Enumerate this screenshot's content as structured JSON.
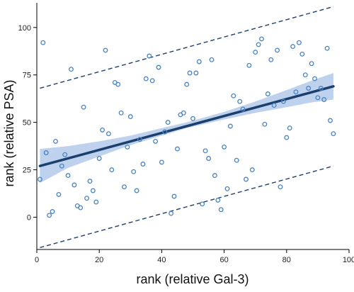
{
  "chart_data": {
    "type": "scatter",
    "xlabel": "rank (relative Gal-3)",
    "ylabel": "rank (relative PSA)",
    "xlim": [
      0,
      100
    ],
    "ylim": [
      -17,
      113
    ],
    "xticks": [
      0,
      20,
      40,
      60,
      80,
      100
    ],
    "yticks": [
      0,
      25,
      50,
      75,
      100
    ],
    "grid": false,
    "legend": "none",
    "colors": {
      "points": "#4a84c4",
      "fit_line": "#1c3f6e",
      "band": "#b3c9ea",
      "prediction_lines": "#1c3f6e"
    },
    "points": [
      [
        1,
        20
      ],
      [
        2,
        92
      ],
      [
        3,
        34
      ],
      [
        4,
        1
      ],
      [
        5,
        3
      ],
      [
        6,
        40
      ],
      [
        7,
        12
      ],
      [
        8,
        27
      ],
      [
        9,
        33
      ],
      [
        10,
        22
      ],
      [
        11,
        78
      ],
      [
        12,
        17
      ],
      [
        13,
        6
      ],
      [
        14,
        5
      ],
      [
        15,
        58
      ],
      [
        16,
        10
      ],
      [
        17,
        19
      ],
      [
        18,
        14
      ],
      [
        19,
        8
      ],
      [
        20,
        31
      ],
      [
        21,
        46
      ],
      [
        22,
        88
      ],
      [
        23,
        44
      ],
      [
        24,
        25
      ],
      [
        25,
        71
      ],
      [
        26,
        70
      ],
      [
        27,
        55
      ],
      [
        28,
        16
      ],
      [
        29,
        37
      ],
      [
        30,
        53
      ],
      [
        31,
        24
      ],
      [
        32,
        14
      ],
      [
        33,
        41
      ],
      [
        34,
        28
      ],
      [
        35,
        73
      ],
      [
        36,
        85
      ],
      [
        37,
        72
      ],
      [
        38,
        40
      ],
      [
        39,
        79
      ],
      [
        40,
        29
      ],
      [
        41,
        45
      ],
      [
        42,
        50
      ],
      [
        43,
        2
      ],
      [
        44,
        11
      ],
      [
        45,
        36
      ],
      [
        46,
        54
      ],
      [
        47,
        55
      ],
      [
        48,
        70
      ],
      [
        49,
        76
      ],
      [
        50,
        52
      ],
      [
        51,
        76
      ],
      [
        52,
        82
      ],
      [
        53,
        7
      ],
      [
        54,
        35
      ],
      [
        55,
        31
      ],
      [
        56,
        83
      ],
      [
        57,
        22
      ],
      [
        58,
        9
      ],
      [
        59,
        4
      ],
      [
        60,
        37
      ],
      [
        61,
        15
      ],
      [
        62,
        48
      ],
      [
        63,
        64
      ],
      [
        64,
        30
      ],
      [
        65,
        61
      ],
      [
        66,
        57
      ],
      [
        67,
        20
      ],
      [
        68,
        80
      ],
      [
        69,
        25
      ],
      [
        70,
        87
      ],
      [
        71,
        91
      ],
      [
        72,
        94
      ],
      [
        73,
        49
      ],
      [
        74,
        65
      ],
      [
        75,
        83
      ],
      [
        76,
        59
      ],
      [
        77,
        88
      ],
      [
        78,
        16
      ],
      [
        79,
        61
      ],
      [
        80,
        42
      ],
      [
        81,
        47
      ],
      [
        82,
        90
      ],
      [
        83,
        66
      ],
      [
        84,
        92
      ],
      [
        85,
        86
      ],
      [
        86,
        75
      ],
      [
        87,
        68
      ],
      [
        88,
        81
      ],
      [
        89,
        73
      ],
      [
        90,
        63
      ],
      [
        91,
        68
      ],
      [
        92,
        62
      ],
      [
        93,
        89
      ],
      [
        94,
        51
      ],
      [
        95,
        44
      ]
    ],
    "fit_line": [
      [
        1,
        27
      ],
      [
        95,
        69
      ]
    ],
    "confidence_band": {
      "x": [
        1,
        10,
        20,
        30,
        40,
        48,
        60,
        70,
        80,
        88,
        95
      ],
      "lower": [
        18,
        26,
        32,
        38,
        43,
        47,
        51.5,
        55,
        58,
        60.5,
        62
      ],
      "upper": [
        36,
        37.5,
        40,
        43,
        47,
        50,
        55.5,
        61,
        67,
        72,
        76
      ]
    },
    "prediction_upper": [
      [
        1,
        68
      ],
      [
        95,
        111
      ]
    ],
    "prediction_lower": [
      [
        1,
        -16
      ],
      [
        95,
        27
      ]
    ]
  }
}
